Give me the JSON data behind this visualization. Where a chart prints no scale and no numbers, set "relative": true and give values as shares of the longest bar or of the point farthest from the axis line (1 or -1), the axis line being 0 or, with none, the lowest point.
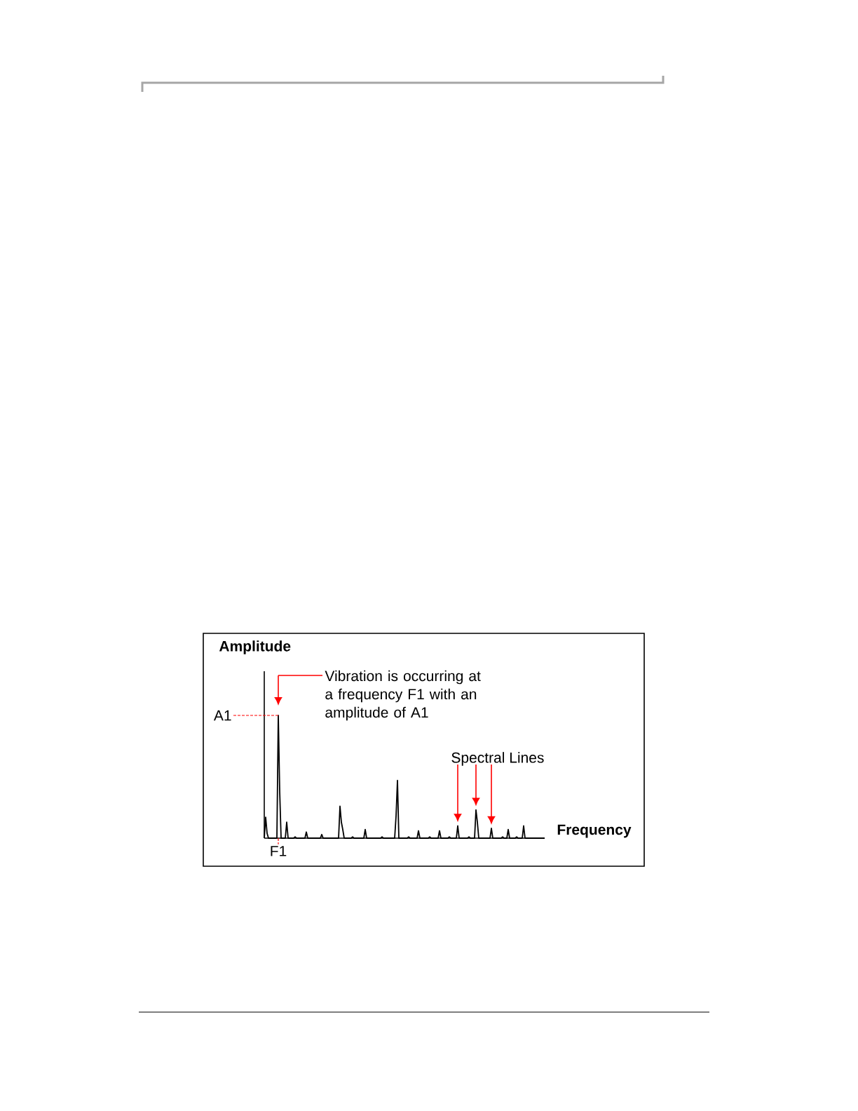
{
  "chart_data": {
    "type": "line",
    "relative": true,
    "color": "#000000",
    "ylabel": "Amplitude",
    "xlabel": "Frequency",
    "annotations": [
      "Vibration is occurring at a frequency F1 with an amplitude of A1",
      "Spectral Lines",
      "A1",
      "F1"
    ],
    "categories": [
      null,
      null,
      null,
      null,
      null,
      null,
      null,
      null,
      null,
      null,
      null,
      null,
      null,
      null,
      null,
      null,
      null,
      null,
      null,
      null,
      null,
      null,
      null,
      null,
      null,
      null,
      null,
      null,
      null,
      null,
      null,
      null,
      null,
      null,
      null,
      null,
      null,
      null,
      null,
      null,
      null,
      null,
      null,
      null,
      null,
      null,
      null,
      null,
      null,
      null,
      null,
      null,
      null,
      null,
      null,
      null,
      null,
      null,
      null,
      null,
      null,
      null,
      null,
      null,
      null,
      null,
      null,
      null,
      null,
      null,
      null,
      null,
      null,
      null,
      null,
      null,
      null,
      null,
      null,
      null,
      null,
      null,
      null,
      null,
      null,
      null,
      null,
      null,
      null,
      null,
      null,
      null,
      null,
      null,
      null,
      null,
      null,
      null,
      null,
      null,
      null,
      null,
      null,
      null,
      null,
      null,
      null,
      null,
      null,
      null,
      null,
      null,
      null,
      null,
      null,
      null,
      null,
      null,
      null,
      null,
      null,
      null,
      null,
      null,
      null,
      null,
      null,
      null,
      null,
      null,
      null,
      null,
      null,
      null,
      null,
      null,
      null,
      null,
      null,
      null,
      null,
      null,
      null,
      null,
      null,
      null,
      null,
      null,
      null,
      null,
      null,
      null,
      null,
      null,
      null,
      null,
      null,
      null,
      null,
      null,
      null,
      null,
      null,
      null,
      null,
      null,
      null,
      null,
      null,
      null,
      null,
      null,
      null,
      null,
      null,
      null,
      null,
      null,
      null,
      null,
      null,
      null,
      null,
      null,
      null,
      null,
      null,
      null,
      null,
      null,
      null,
      null,
      null,
      null,
      null,
      null,
      null,
      null,
      null,
      null,
      null
    ],
    "values": [
      0,
      0.17,
      0.04,
      0,
      0,
      0,
      0,
      0,
      0,
      0,
      1,
      0.38,
      0,
      0,
      0,
      0,
      0.13,
      0,
      0,
      0,
      0,
      0,
      0.01,
      0,
      0,
      0,
      0,
      0,
      0,
      0,
      0.05,
      0,
      0,
      0,
      0,
      0,
      0,
      0,
      0,
      0,
      0,
      0.03,
      0,
      0,
      0,
      0,
      0,
      0,
      0,
      0,
      0,
      0,
      0,
      0,
      0.26,
      0.13,
      0.07,
      0,
      0,
      0,
      0,
      0,
      0,
      0.01,
      0,
      0,
      0,
      0,
      0,
      0,
      0,
      0,
      0.07,
      0,
      0,
      0,
      0,
      0,
      0,
      0,
      0,
      0,
      0,
      0,
      0.01,
      0,
      0,
      0,
      0,
      0,
      0,
      0,
      0,
      0,
      0.18,
      0.47,
      0,
      0,
      0,
      0,
      0,
      0,
      0,
      0.01,
      0,
      0,
      0,
      0,
      0,
      0,
      0.06,
      0,
      0,
      0,
      0,
      0,
      0,
      0,
      0.01,
      0,
      0,
      0,
      0,
      0,
      0,
      0.06,
      0,
      0,
      0,
      0,
      0,
      0,
      0.01,
      0,
      0,
      0,
      0,
      0,
      0.1,
      0,
      0,
      0,
      0,
      0,
      0,
      0,
      0.01,
      0,
      0,
      0,
      0,
      0.23,
      0.13,
      0,
      0,
      0,
      0,
      0,
      0,
      0,
      0,
      0,
      0.08,
      0,
      0,
      0,
      0,
      0,
      0,
      0,
      0.01,
      0,
      0,
      0,
      0.07,
      0,
      0,
      0,
      0,
      0,
      0.01,
      0,
      0,
      0,
      0,
      0.1,
      0,
      0,
      0,
      0,
      0,
      0,
      0,
      0,
      0,
      0,
      0,
      0,
      0,
      0,
      0
    ]
  }
}
